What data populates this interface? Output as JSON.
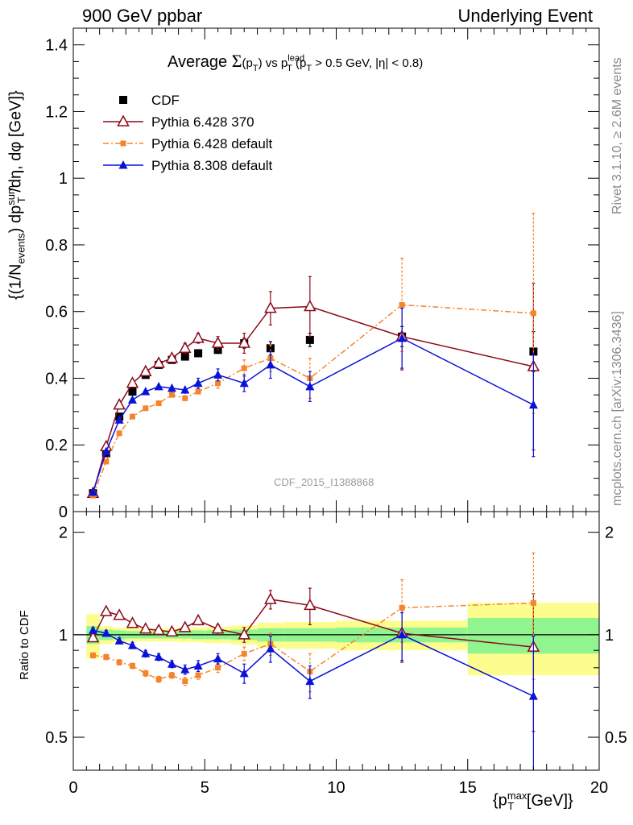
{
  "header": {
    "energy_label": "900 GeV ppbar",
    "process_label": "Underlying Event"
  },
  "side_text": {
    "rivet": "Rivet 3.1.10, ≥ 2.6M events",
    "source": "mcplots.cern.ch [arXiv:1306.3436]"
  },
  "colors": {
    "cdf": "#000000",
    "pythia6_370": "#8b0a1a",
    "pythia6_default": "#f5842c",
    "pythia8_default": "#0b12d8",
    "band_inner": "#90f58f",
    "band_outer": "#fdfd8e",
    "watermark": "#9a9a9a"
  },
  "chart_data": {
    "type": "scatter",
    "title": "Average Σ(pT) vs pT lead (pT > 0.5 GeV, |η| < 0.8)",
    "title_parts": {
      "average": "Average ",
      "sigma": "Σ",
      "open": "(p",
      "t_sub": "T",
      "close": ")",
      "vs": " vs p",
      "lead": "lead",
      "cut_open": " (p",
      "cut_rest": " > 0.5 GeV, |η| < 0.8)"
    },
    "analysis_tag": "CDF_2015_I1388868",
    "ylabel_main": "{(1/N_events) dp_T^sum/dη, dφ [GeV]}",
    "ylabel_main_parts": {
      "a": "{(1/N",
      "b": "events",
      "c": ") dp",
      "d": "sum",
      "e": "T",
      "f": " /dη, dφ [GeV]}"
    },
    "ylabel_ratio": "Ratio to CDF",
    "xlabel": "{pT max [GeV]}",
    "xlabel_parts": {
      "a": "{p",
      "b": "max",
      "c": "T",
      "d": " [GeV]}"
    },
    "xlim": [
      0,
      20
    ],
    "ylim_main": [
      0,
      1.45
    ],
    "ylim_ratio": [
      0.4,
      2.3
    ],
    "ratio_log_scale": true,
    "legend_position": "top-left",
    "x_ticks": [
      "0",
      "5",
      "10",
      "15",
      "20"
    ],
    "y_ticks_main": [
      "0",
      "0.2",
      "0.4",
      "0.6",
      "0.8",
      "1",
      "1.2",
      "1.4"
    ],
    "y_ticks_ratio": [
      "0.5",
      "1",
      "2"
    ],
    "series": [
      {
        "name": "CDF",
        "marker": "filled-square",
        "x": [
          0.75,
          1.25,
          1.75,
          2.25,
          2.75,
          3.25,
          3.75,
          4.25,
          4.75,
          5.5,
          6.5,
          7.5,
          9.0,
          12.5,
          17.5
        ],
        "y": [
          0.055,
          0.175,
          0.285,
          0.36,
          0.41,
          0.44,
          0.455,
          0.465,
          0.475,
          0.485,
          0.505,
          0.49,
          0.515,
          0.525,
          0.48
        ],
        "yerr": [
          0.005,
          0.008,
          0.01,
          0.01,
          0.01,
          0.01,
          0.01,
          0.01,
          0.012,
          0.012,
          0.015,
          0.02,
          0.02,
          0.03,
          0.06
        ]
      },
      {
        "name": "Pythia 6.428 370",
        "marker": "open-triangle",
        "line": "solid",
        "x": [
          0.75,
          1.25,
          1.75,
          2.25,
          2.75,
          3.25,
          3.75,
          4.25,
          4.75,
          5.5,
          6.5,
          7.5,
          9.0,
          12.5,
          17.5
        ],
        "y": [
          0.055,
          0.195,
          0.32,
          0.385,
          0.42,
          0.445,
          0.46,
          0.49,
          0.52,
          0.505,
          0.505,
          0.61,
          0.615,
          0.525,
          0.435
        ],
        "yerr": [
          0.005,
          0.008,
          0.012,
          0.012,
          0.012,
          0.012,
          0.012,
          0.015,
          0.015,
          0.02,
          0.03,
          0.05,
          0.09,
          0.1,
          0.25
        ]
      },
      {
        "name": "Pythia 6.428 default",
        "marker": "filled-small-square",
        "line": "dash-dot",
        "x": [
          0.75,
          1.25,
          1.75,
          2.25,
          2.75,
          3.25,
          3.75,
          4.25,
          4.75,
          5.5,
          6.5,
          7.5,
          9.0,
          12.5,
          17.5
        ],
        "y": [
          0.048,
          0.15,
          0.235,
          0.285,
          0.31,
          0.325,
          0.35,
          0.34,
          0.36,
          0.385,
          0.43,
          0.46,
          0.4,
          0.62,
          0.595
        ],
        "yerr": [
          0.004,
          0.006,
          0.008,
          0.008,
          0.008,
          0.008,
          0.008,
          0.01,
          0.012,
          0.015,
          0.025,
          0.04,
          0.06,
          0.14,
          0.3
        ]
      },
      {
        "name": "Pythia 8.308 default",
        "marker": "filled-triangle",
        "line": "solid",
        "x": [
          0.75,
          1.25,
          1.75,
          2.25,
          2.75,
          3.25,
          3.75,
          4.25,
          4.75,
          5.5,
          6.5,
          7.5,
          9.0,
          12.5,
          17.5
        ],
        "y": [
          0.058,
          0.18,
          0.275,
          0.335,
          0.36,
          0.375,
          0.37,
          0.365,
          0.385,
          0.41,
          0.385,
          0.44,
          0.375,
          0.52,
          0.32
        ],
        "yerr": [
          0.005,
          0.008,
          0.01,
          0.01,
          0.01,
          0.01,
          0.012,
          0.012,
          0.015,
          0.018,
          0.025,
          0.04,
          0.045,
          0.09,
          0.155
        ]
      }
    ],
    "ratio_series": [
      {
        "name": "Pythia 6.428 370",
        "x": [
          0.75,
          1.25,
          1.75,
          2.25,
          2.75,
          3.25,
          3.75,
          4.25,
          4.75,
          5.5,
          6.5,
          7.5,
          9.0,
          12.5,
          17.5
        ],
        "y": [
          0.98,
          1.17,
          1.14,
          1.08,
          1.04,
          1.03,
          1.02,
          1.05,
          1.1,
          1.04,
          1.0,
          1.27,
          1.22,
          1.01,
          0.92
        ],
        "yerr": [
          0.02,
          0.02,
          0.02,
          0.02,
          0.02,
          0.02,
          0.02,
          0.025,
          0.03,
          0.03,
          0.05,
          0.08,
          0.15,
          0.18,
          0.4
        ]
      },
      {
        "name": "Pythia 6.428 default",
        "x": [
          0.75,
          1.25,
          1.75,
          2.25,
          2.75,
          3.25,
          3.75,
          4.25,
          4.75,
          5.5,
          6.5,
          7.5,
          9.0,
          12.5,
          17.5
        ],
        "y": [
          0.87,
          0.86,
          0.83,
          0.81,
          0.77,
          0.74,
          0.76,
          0.73,
          0.76,
          0.8,
          0.88,
          0.94,
          0.78,
          1.2,
          1.24
        ],
        "yerr": [
          0.015,
          0.015,
          0.015,
          0.015,
          0.015,
          0.015,
          0.015,
          0.02,
          0.02,
          0.025,
          0.04,
          0.07,
          0.1,
          0.25,
          0.5
        ]
      },
      {
        "name": "Pythia 8.308 default",
        "x": [
          0.75,
          1.25,
          1.75,
          2.25,
          2.75,
          3.25,
          3.75,
          4.25,
          4.75,
          5.5,
          6.5,
          7.5,
          9.0,
          12.5,
          17.5
        ],
        "y": [
          1.03,
          1.01,
          0.96,
          0.93,
          0.88,
          0.86,
          0.82,
          0.79,
          0.81,
          0.85,
          0.77,
          0.91,
          0.73,
          1.0,
          0.66
        ],
        "yerr": [
          0.02,
          0.02,
          0.02,
          0.02,
          0.02,
          0.02,
          0.02,
          0.025,
          0.03,
          0.03,
          0.05,
          0.08,
          0.08,
          0.16,
          0.33
        ]
      }
    ],
    "ratio_bands": {
      "x_edges": [
        0.5,
        1.0,
        1.5,
        2.0,
        2.5,
        3.0,
        3.5,
        4.0,
        4.5,
        5.0,
        6.0,
        7.0,
        8.0,
        10.0,
        15.0,
        20.0
      ],
      "inner": [
        0.06,
        0.035,
        0.03,
        0.025,
        0.025,
        0.025,
        0.025,
        0.025,
        0.03,
        0.03,
        0.035,
        0.045,
        0.045,
        0.05,
        0.12
      ],
      "outer": [
        0.15,
        0.06,
        0.05,
        0.045,
        0.045,
        0.045,
        0.045,
        0.05,
        0.05,
        0.055,
        0.065,
        0.085,
        0.09,
        0.1,
        0.24
      ]
    }
  }
}
